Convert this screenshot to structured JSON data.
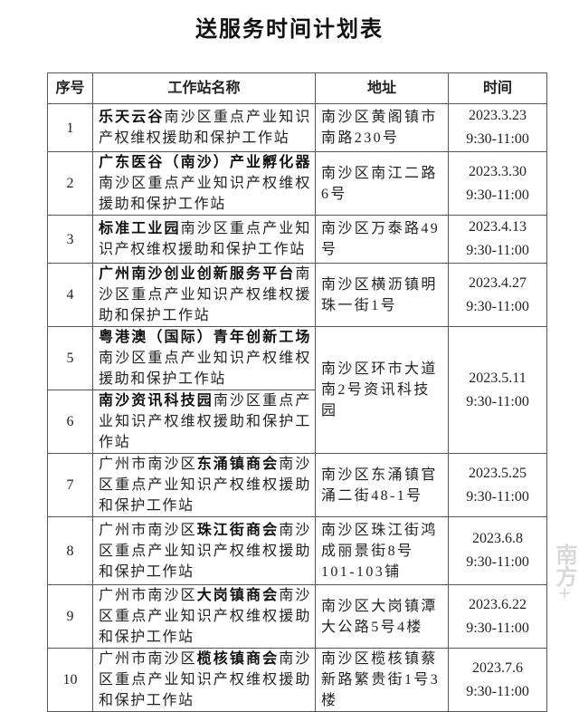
{
  "title": "送服务时间计划表",
  "headers": [
    "序号",
    "工作站名称",
    "地址",
    "时间"
  ],
  "rows": [
    {
      "seq": "1",
      "pre": "",
      "bold": "乐天云谷",
      "post": "南沙区重点产业知识产权维权援助和保护工作站",
      "address": "南沙区黄阁镇市南路230号",
      "date": "2023.3.23",
      "hours": "9:30-11:00"
    },
    {
      "seq": "2",
      "pre": "",
      "bold": "广东医谷（南沙）产业孵化器",
      "post": "南沙区重点产业知识产权维权援助和保护工作站",
      "address": "南沙区南江二路6号",
      "date": "2023.3.30",
      "hours": "9:30-11:00"
    },
    {
      "seq": "3",
      "pre": "",
      "bold": "标准工业园",
      "post": "南沙区重点产业知识产权维权援助和保护工作站",
      "address": "南沙区万泰路49号",
      "date": "2023.4.13",
      "hours": "9:30-11:00"
    },
    {
      "seq": "4",
      "pre": "",
      "bold": "广州南沙创业创新服务平台",
      "post": "南沙区重点产业知识产权维权援助和保护工作站",
      "address": "南沙区横沥镇明珠一街1号",
      "date": "2023.4.27",
      "hours": "9:30-11:00"
    },
    {
      "seq": "5",
      "pre": "",
      "bold": "粤港澳（国际）青年创新工场",
      "post": "南沙区重点产业知识产权维权援助和保护工作站",
      "address": "南沙区环市大道南2号资讯科技园",
      "date": "2023.5.11",
      "hours": "9:30-11:00"
    },
    {
      "seq": "6",
      "pre": "",
      "bold": "南沙资讯科技园",
      "post": "南沙区重点产业知识产权维权援助和保护工作站"
    },
    {
      "seq": "7",
      "pre": "广州市南沙区",
      "bold": "东涌镇商会",
      "post": "南沙区重点产业知识产权维权援助和保护工作站",
      "address": "南沙区东涌镇官涌二街48-1号",
      "date": "2023.5.25",
      "hours": "9:30-11:00"
    },
    {
      "seq": "8",
      "pre": "广州市南沙区",
      "bold": "珠江街商会",
      "post": "南沙区重点产业知识产权维权援助和保护工作站",
      "address": "南沙区珠江街鸿成丽景街8号101-103铺",
      "date": "2023.6.8",
      "hours": "9:30-11:00"
    },
    {
      "seq": "9",
      "pre": "广州市南沙区",
      "bold": "大岗镇商会",
      "post": "南沙区重点产业知识产权维权援助和保护工作站",
      "address": "南沙区大岗镇潭大公路5号4楼",
      "date": "2023.6.22",
      "hours": "9:30-11:00"
    },
    {
      "seq": "10",
      "pre": "广州市南沙区",
      "bold": "榄核镇商会",
      "post": "南沙区重点产业知识产权维权援助和保护工作站",
      "address": "南沙区榄核镇蔡新路繁贵街1号3楼",
      "date": "2023.7.6",
      "hours": "9:30-11:00"
    }
  ],
  "watermark": "南方+"
}
